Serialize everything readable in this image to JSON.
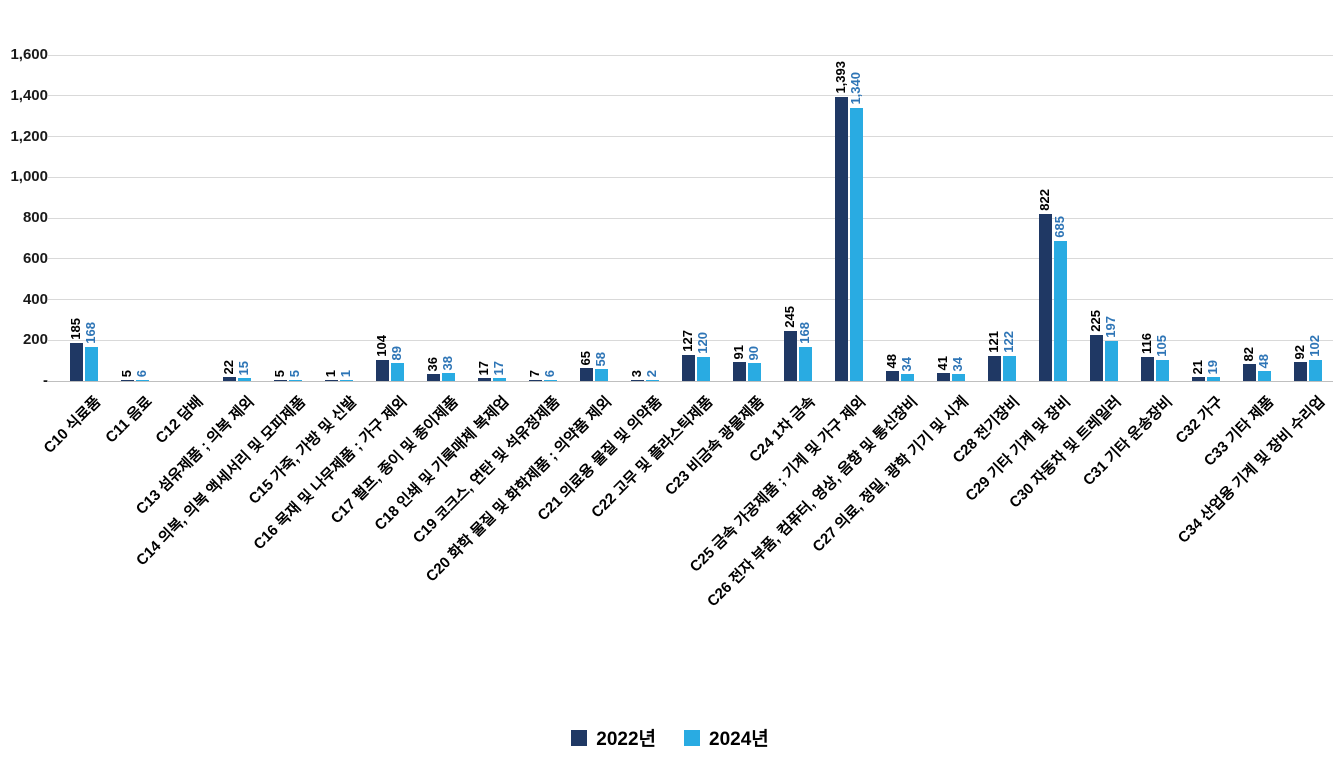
{
  "chart_data": {
    "type": "bar",
    "title": "",
    "xlabel": "",
    "ylabel": "",
    "ylim": [
      0,
      1600
    ],
    "ytick_step": 200,
    "ytick_labels": [
      "-",
      "200",
      "400",
      "600",
      "800",
      "1,000",
      "1,200",
      "1,400",
      "1,600"
    ],
    "grid": true,
    "legend_position": "bottom",
    "categories": [
      "C10 식료품",
      "C11 음료",
      "C12 담배",
      "C13 섬유제품 ; 의복 제외",
      "C14 의복, 의복 액세서리 및 모피제품",
      "C15 가죽, 가방 및 신발",
      "C16 목재 및 나무제품 ; 가구 제외",
      "C17 펄프, 종이 및 종이제품",
      "C18 인쇄 및 기록매체 복제업",
      "C19 코크스, 연탄 및 석유정제품",
      "C20 화학 물질 및 화학제품 ; 의약품 제외",
      "C21 의료용 물질 및 의약품",
      "C22 고무 및 플라스틱제품",
      "C23 비금속 광물제품",
      "C24 1차 금속",
      "C25 금속 가공제품 ; 기계 및 가구 제외",
      "C26 전자 부품, 컴퓨터, 영상, 음향 및 통신장비",
      "C27 의료, 정밀, 광학 기기 및 시계",
      "C28 전기장비",
      "C29 기타 기계 및 장비",
      "C30 자동차 및 트레일러",
      "C31 기타 운송장비",
      "C32 가구",
      "C33 기타 제품",
      "C34 산업용 기계 및 장비 수리업"
    ],
    "series": [
      {
        "name": "2022년",
        "color": "#1f3864",
        "label_color": "#000000",
        "values": [
          185,
          5,
          0,
          22,
          5,
          1,
          104,
          36,
          17,
          7,
          65,
          3,
          127,
          91,
          245,
          1393,
          48,
          41,
          121,
          822,
          225,
          116,
          21,
          82,
          92
        ]
      },
      {
        "name": "2024년",
        "color": "#29abe2",
        "label_color": "#2e75b6",
        "values": [
          168,
          6,
          0,
          15,
          5,
          1,
          89,
          38,
          17,
          6,
          58,
          2,
          120,
          90,
          168,
          1340,
          34,
          34,
          122,
          685,
          197,
          105,
          19,
          48,
          102
        ]
      }
    ],
    "colors": {
      "grid": "#d9d9d9",
      "axis_line": "#bfbfbf",
      "axis_text": "#1a1a1a"
    }
  }
}
